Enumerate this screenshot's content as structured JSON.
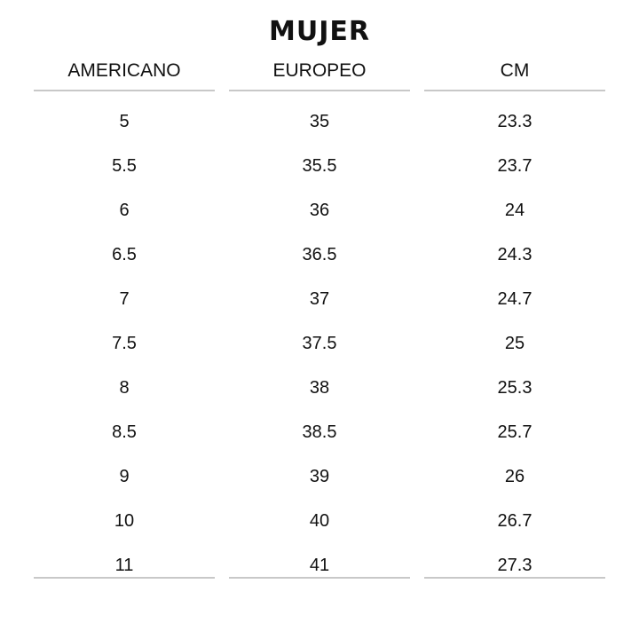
{
  "title": "MUJER",
  "headers": [
    "AMERICANO",
    "EUROPEO",
    "CM"
  ],
  "rows": [
    [
      "5",
      "35",
      "23.3"
    ],
    [
      "5.5",
      "35.5",
      "23.7"
    ],
    [
      "6",
      "36",
      "24"
    ],
    [
      "6.5",
      "36.5",
      "24.3"
    ],
    [
      "7",
      "37",
      "24.7"
    ],
    [
      "7.5",
      "37.5",
      "25"
    ],
    [
      "8",
      "38",
      "25.3"
    ],
    [
      "8.5",
      "38.5",
      "25.7"
    ],
    [
      "9",
      "39",
      "26"
    ],
    [
      "10",
      "40",
      "26.7"
    ],
    [
      "11",
      "41",
      "27.3"
    ]
  ]
}
